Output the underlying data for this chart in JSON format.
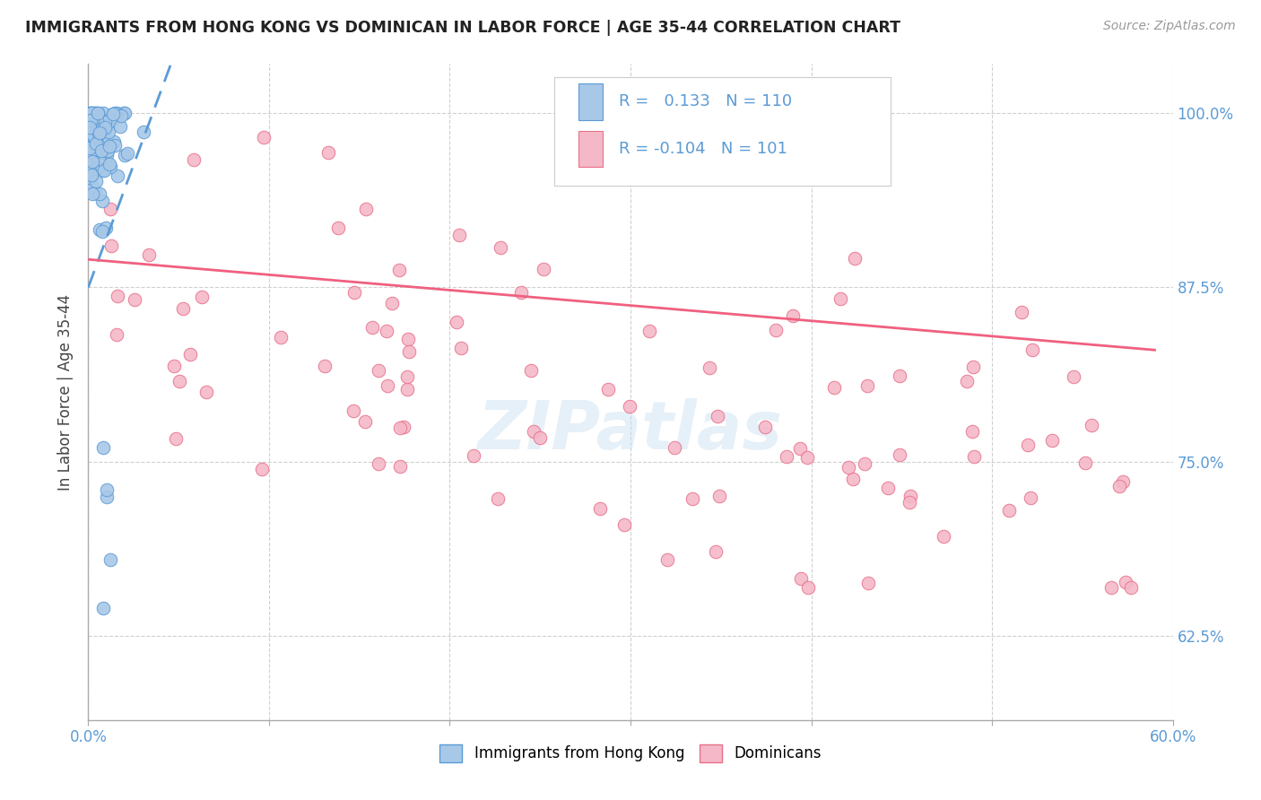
{
  "title": "IMMIGRANTS FROM HONG KONG VS DOMINICAN IN LABOR FORCE | AGE 35-44 CORRELATION CHART",
  "source": "Source: ZipAtlas.com",
  "ylabel": "In Labor Force | Age 35-44",
  "ytick_labels": [
    "100.0%",
    "87.5%",
    "75.0%",
    "62.5%"
  ],
  "ytick_values": [
    1.0,
    0.875,
    0.75,
    0.625
  ],
  "xlim": [
    0.0,
    0.6
  ],
  "ylim": [
    0.565,
    1.035
  ],
  "hk_color": "#a8c8e8",
  "hk_edge_color": "#5b9bd5",
  "dom_color": "#f4b8c8",
  "dom_edge_color": "#e8708a",
  "trend_hk_color": "#5b9bd5",
  "trend_dom_color": "#f06080",
  "hk_R": 0.133,
  "hk_N": 110,
  "dom_R": -0.104,
  "dom_N": 101,
  "watermark": "ZIPatlas",
  "legend_label_hk": "Immigrants from Hong Kong",
  "legend_label_dom": "Dominicans"
}
